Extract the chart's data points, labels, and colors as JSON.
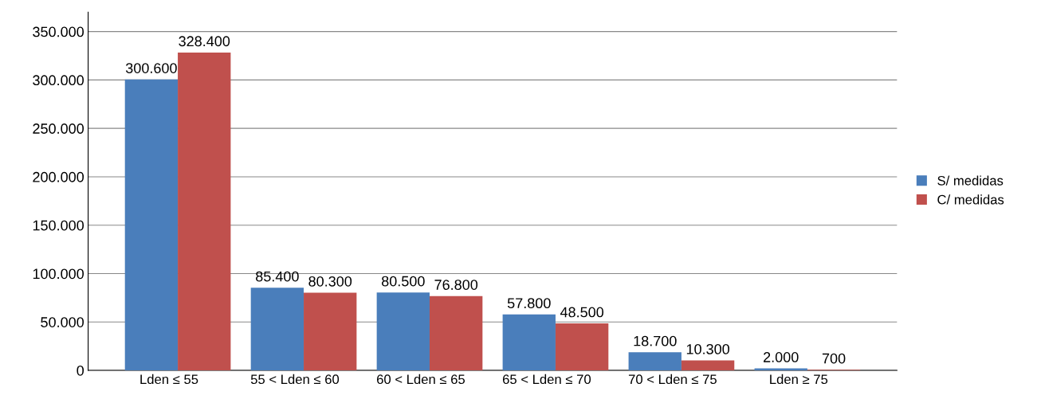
{
  "chart_data": {
    "type": "bar",
    "categories": [
      "Lden ≤ 55",
      "55 < Lden ≤ 60",
      "60 < Lden ≤ 65",
      "65 < Lden ≤ 70",
      "70 < Lden ≤ 75",
      "Lden ≥ 75"
    ],
    "series": [
      {
        "name": "S/ medidas",
        "color": "#4a7ebb",
        "values": [
          300600,
          85400,
          80500,
          57800,
          18700,
          2000
        ],
        "value_labels": [
          "300.600",
          "85.400",
          "80.500",
          "57.800",
          "18.700",
          "2.000"
        ]
      },
      {
        "name": "C/ medidas",
        "color": "#c0504d",
        "values": [
          328400,
          80300,
          76800,
          48500,
          10300,
          700
        ],
        "value_labels": [
          "328.400",
          "80.300",
          "76.800",
          "48.500",
          "10.300",
          "700"
        ]
      }
    ],
    "ylim": [
      0,
      370000
    ],
    "yticks": [
      0,
      {
        "value": 50000,
        "label": "50.000"
      },
      {
        "value": 100000,
        "label": "100.000"
      },
      {
        "value": 150000,
        "label": "150.000"
      },
      {
        "value": 200000,
        "label": "200.000"
      },
      {
        "value": 250000,
        "label": "250.000"
      },
      {
        "value": 300000,
        "label": "300.000"
      },
      {
        "value": 350000,
        "label": "350.000"
      }
    ],
    "grid": "y",
    "legend": "right"
  }
}
